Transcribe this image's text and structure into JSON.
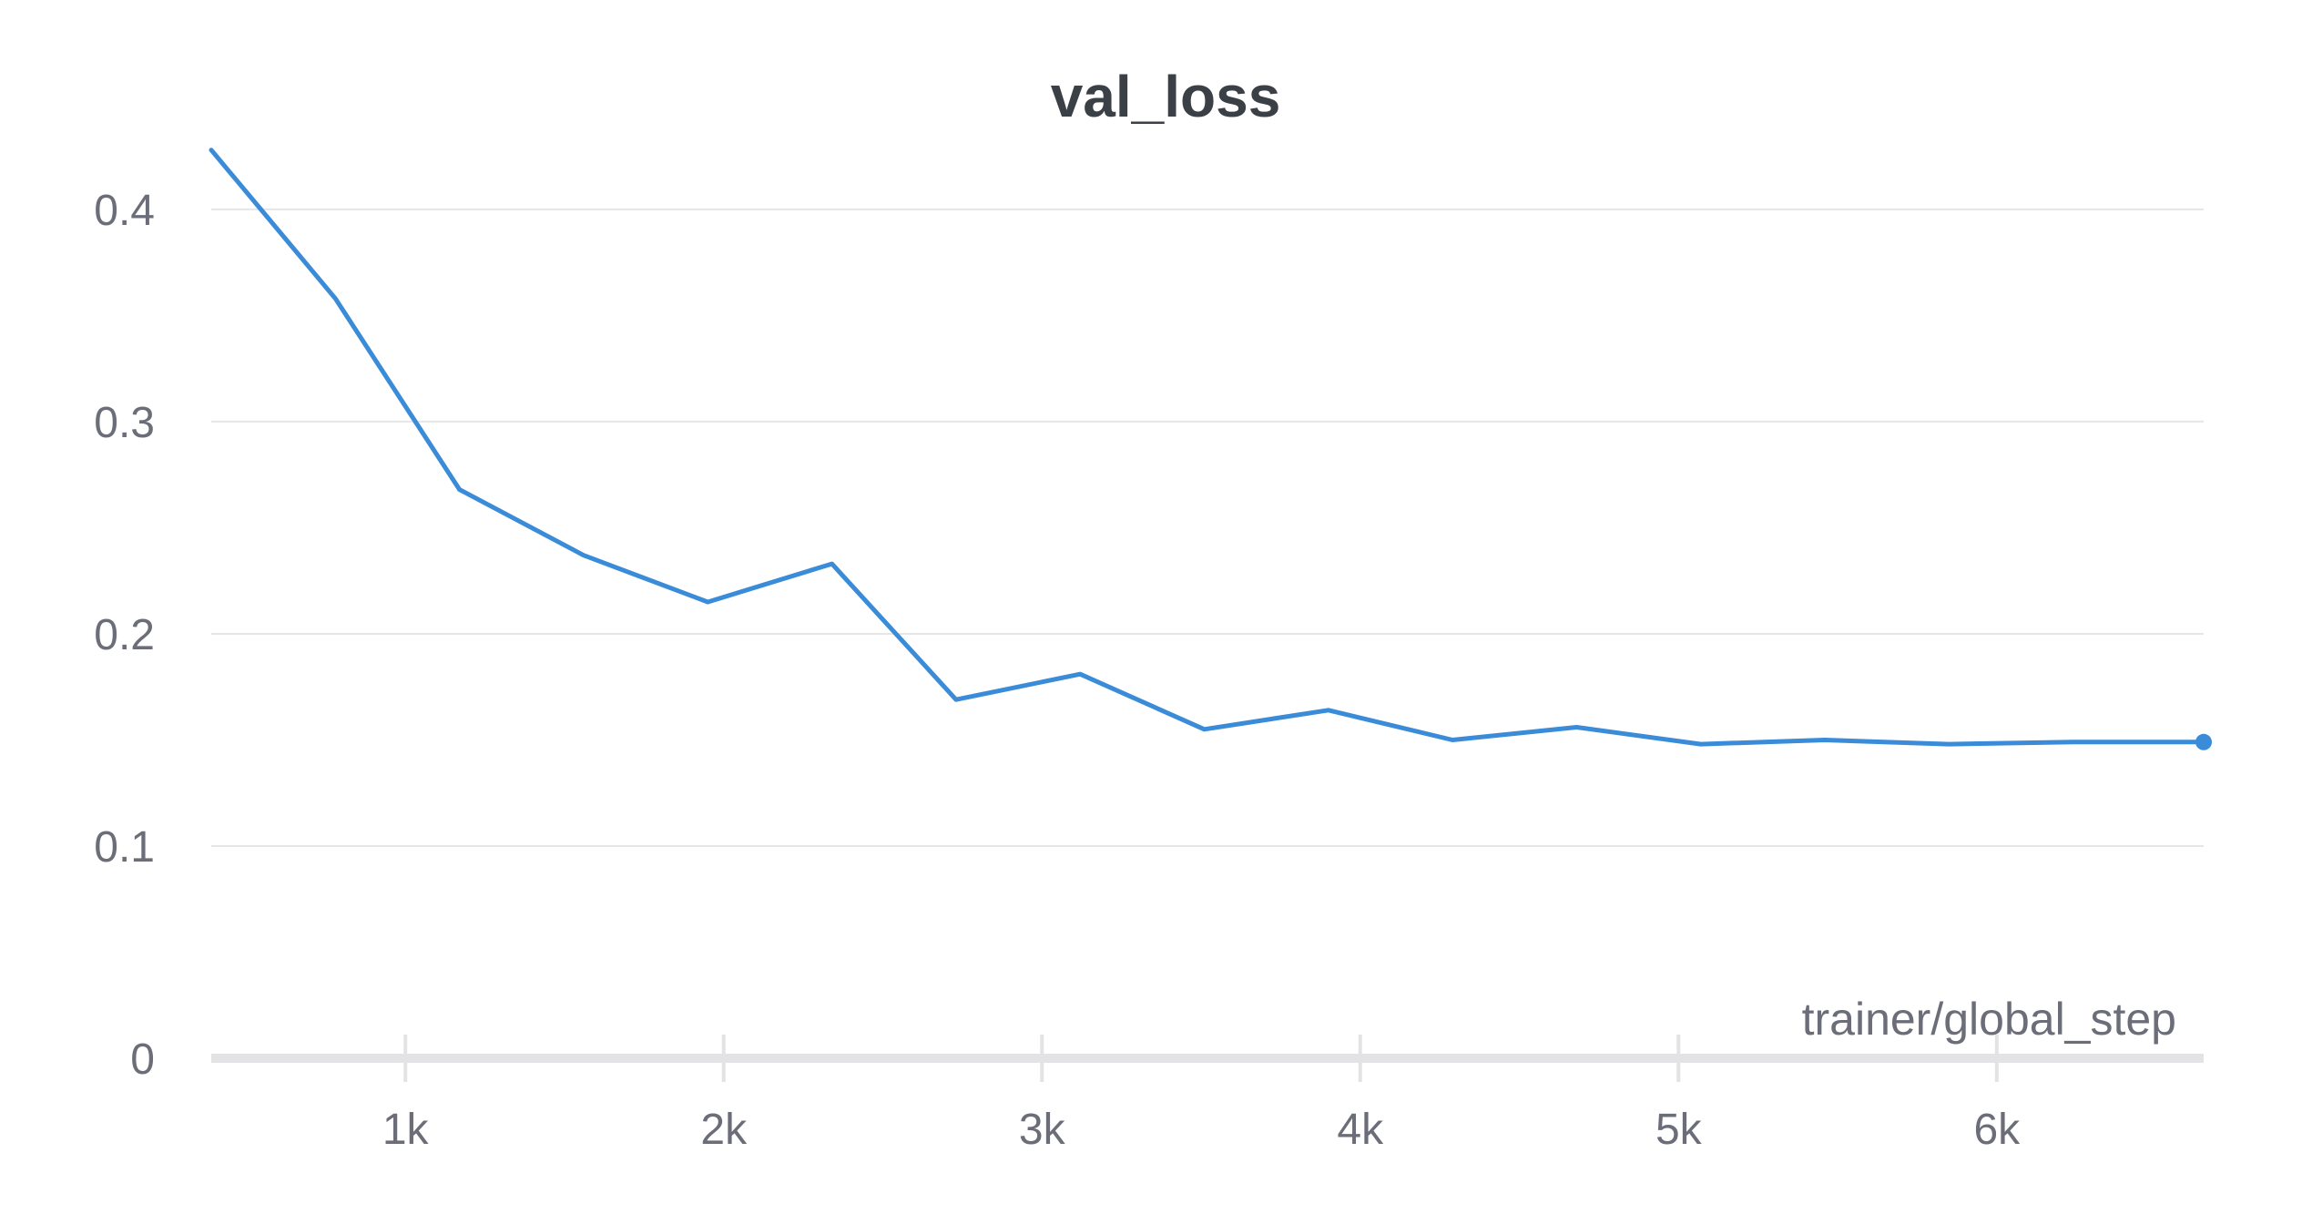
{
  "chart_data": {
    "type": "line",
    "title": "val_loss",
    "xlabel": "trainer/global_step",
    "ylabel": "",
    "xlim": [
      390,
      6650
    ],
    "ylim": [
      0,
      0.43
    ],
    "x_ticks": [
      {
        "value": 1000,
        "label": "1k"
      },
      {
        "value": 2000,
        "label": "2k"
      },
      {
        "value": 3000,
        "label": "3k"
      },
      {
        "value": 4000,
        "label": "4k"
      },
      {
        "value": 5000,
        "label": "5k"
      },
      {
        "value": 6000,
        "label": "6k"
      }
    ],
    "y_ticks": [
      {
        "value": 0,
        "label": "0"
      },
      {
        "value": 0.1,
        "label": "0.1"
      },
      {
        "value": 0.2,
        "label": "0.2"
      },
      {
        "value": 0.3,
        "label": "0.3"
      },
      {
        "value": 0.4,
        "label": "0.4"
      }
    ],
    "grid": true,
    "legend": "none",
    "series": [
      {
        "color": "#3a8bd8",
        "x": [
          390,
          780,
          1170,
          1560,
          1950,
          2340,
          2730,
          3120,
          3510,
          3900,
          4290,
          4680,
          5070,
          5460,
          5850,
          6240,
          6650
        ],
        "y": [
          0.428,
          0.358,
          0.268,
          0.237,
          0.215,
          0.233,
          0.169,
          0.181,
          0.155,
          0.164,
          0.15,
          0.156,
          0.148,
          0.15,
          0.148,
          0.149,
          0.149
        ]
      }
    ]
  }
}
